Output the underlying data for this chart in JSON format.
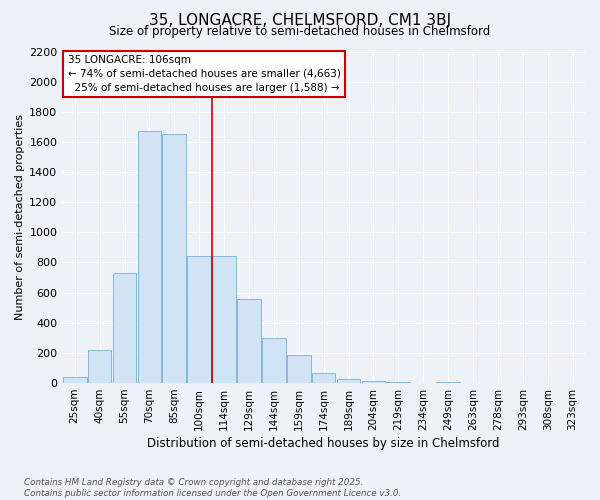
{
  "title": "35, LONGACRE, CHELMSFORD, CM1 3BJ",
  "subtitle": "Size of property relative to semi-detached houses in Chelmsford",
  "xlabel": "Distribution of semi-detached houses by size in Chelmsford",
  "ylabel": "Number of semi-detached properties",
  "categories": [
    "25sqm",
    "40sqm",
    "55sqm",
    "70sqm",
    "85sqm",
    "100sqm",
    "114sqm",
    "129sqm",
    "144sqm",
    "159sqm",
    "174sqm",
    "189sqm",
    "204sqm",
    "219sqm",
    "234sqm",
    "249sqm",
    "263sqm",
    "278sqm",
    "293sqm",
    "308sqm",
    "323sqm"
  ],
  "values": [
    42,
    220,
    730,
    1675,
    1655,
    845,
    845,
    560,
    300,
    185,
    65,
    30,
    15,
    10,
    0,
    5,
    0,
    0,
    0,
    0,
    0
  ],
  "bar_color": "#d0e4f5",
  "bar_edge_color": "#7bafd4",
  "divider_index": 5,
  "property_size": 106,
  "pct_smaller": 74,
  "count_smaller": 4663,
  "pct_larger": 25,
  "count_larger": 1588,
  "ylim": [
    0,
    2200
  ],
  "yticks": [
    0,
    200,
    400,
    600,
    800,
    1000,
    1200,
    1400,
    1600,
    1800,
    2000,
    2200
  ],
  "background_color": "#edf1f8",
  "grid_color": "#ffffff",
  "divider_color": "#cc0000",
  "ann_box_edge": "#cc0000",
  "footer": "Contains HM Land Registry data © Crown copyright and database right 2025.\nContains public sector information licensed under the Open Government Licence v3.0."
}
